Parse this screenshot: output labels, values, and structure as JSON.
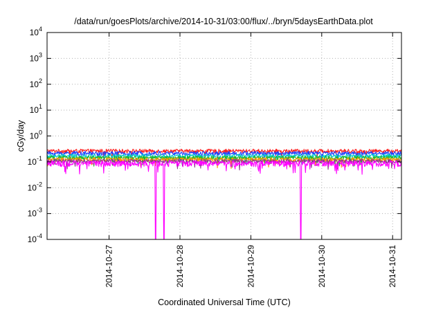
{
  "chart_data": {
    "type": "line",
    "title": "/data/run/goesPlots/archive/2014-10-31/03:00/flux/../bryn/5daysEarthData.plot",
    "xlabel": "Coordinated Universal Time (UTC)",
    "ylabel": "cGy/day",
    "y_scale": "log",
    "ylim": [
      0.0001,
      10000
    ],
    "y_ticks": [
      {
        "value": 0.0001,
        "base": "10",
        "exp": "-4"
      },
      {
        "value": 0.001,
        "base": "10",
        "exp": "-3"
      },
      {
        "value": 0.01,
        "base": "10",
        "exp": "-2"
      },
      {
        "value": 0.1,
        "base": "10",
        "exp": "-1"
      },
      {
        "value": 1,
        "base": "10",
        "exp": "0"
      },
      {
        "value": 10,
        "base": "10",
        "exp": "1"
      },
      {
        "value": 100,
        "base": "10",
        "exp": "2"
      },
      {
        "value": 1000,
        "base": "10",
        "exp": "3"
      },
      {
        "value": 10000,
        "base": "10",
        "exp": "4"
      }
    ],
    "xlim": [
      "2014-10-26T03:00",
      "2014-10-31T03:00"
    ],
    "x_ticks": [
      "2014-10-27",
      "2014-10-28",
      "2014-10-29",
      "2014-10-30",
      "2014-10-31"
    ],
    "grid": true,
    "series": [
      {
        "color": "#ff2020",
        "base": 0.26,
        "spread": 0.09
      },
      {
        "color": "#2040ff",
        "base": 0.21,
        "spread": 0.08
      },
      {
        "color": "#00c8c8",
        "base": 0.165,
        "spread": 0.06
      },
      {
        "color": "#22b822",
        "base": 0.14,
        "spread": 0.05
      },
      {
        "color": "#ff9900",
        "base": 0.12,
        "spread": 0.045
      },
      {
        "color": "#8a3a8a",
        "base": 0.105,
        "spread": 0.04
      },
      {
        "color": "#ff00ff",
        "base": 0.085,
        "spread": 0.045
      }
    ],
    "drop_events": [
      {
        "time": "2014-10-27T15:40",
        "series_color": "#ff00ff",
        "to": 0.0001
      },
      {
        "time": "2014-10-27T18:30",
        "series_color": "#ff00ff",
        "to": 0.0001
      },
      {
        "time": "2014-10-29T16:50",
        "series_color": "#ff00ff",
        "to": 0.0001
      }
    ]
  }
}
